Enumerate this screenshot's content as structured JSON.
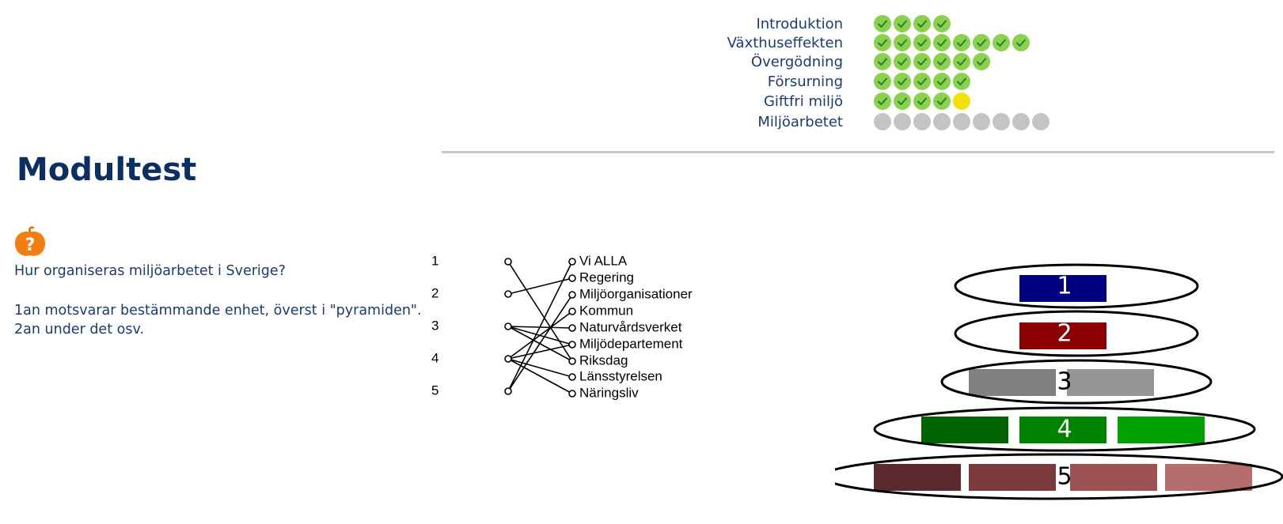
{
  "progress": {
    "modules": [
      {
        "label": "Introduktion",
        "statuses": [
          "done",
          "done",
          "done",
          "done"
        ]
      },
      {
        "label": "Växthuseffekten",
        "statuses": [
          "done",
          "done",
          "done",
          "done",
          "done",
          "done",
          "done",
          "done"
        ]
      },
      {
        "label": "Övergödning",
        "statuses": [
          "done",
          "done",
          "done",
          "done",
          "done",
          "done"
        ]
      },
      {
        "label": "Försurning",
        "statuses": [
          "done",
          "done",
          "done",
          "done",
          "done"
        ]
      },
      {
        "label": "Giftfri miljö",
        "statuses": [
          "done",
          "done",
          "done",
          "done",
          "current"
        ]
      },
      {
        "label": "Miljöarbetet",
        "statuses": [
          "todo",
          "todo",
          "todo",
          "todo",
          "todo",
          "todo",
          "todo",
          "todo",
          "todo"
        ]
      }
    ],
    "colors": {
      "done": "#8ad14e",
      "current": "#f2e10a",
      "todo": "#c4c4c4",
      "check": "#2e7d32"
    }
  },
  "page": {
    "title": "Modultest"
  },
  "question": {
    "icon": "question-apple-icon",
    "prompt": "Hur organiseras miljöarbetet i Sverige?",
    "instruction_line1": "1an motsvarar bestämmande enhet, överst i \"pyramiden\".",
    "instruction_line2": "2an under det osv."
  },
  "matching": {
    "levels": [
      "1",
      "2",
      "3",
      "4",
      "5"
    ],
    "options": [
      "Vi ALLA",
      "Regering",
      "Miljöorganisationer",
      "Kommun",
      "Naturvårdsverket",
      "Miljödepartement",
      "Riksdag",
      "Länsstyrelsen",
      "Näringsliv"
    ],
    "connections": [
      [
        1,
        7
      ],
      [
        2,
        2
      ],
      [
        3,
        5
      ],
      [
        3,
        6
      ],
      [
        3,
        7
      ],
      [
        4,
        4
      ],
      [
        4,
        6
      ],
      [
        4,
        8
      ],
      [
        4,
        9
      ],
      [
        5,
        1
      ],
      [
        5,
        3
      ]
    ]
  },
  "pyramid": {
    "tiers": [
      {
        "label": "1",
        "colors": [
          "#000080"
        ]
      },
      {
        "label": "2",
        "colors": [
          "#8b0000"
        ]
      },
      {
        "label": "3",
        "colors": [
          "#808080",
          "#969696"
        ]
      },
      {
        "label": "4",
        "colors": [
          "#006400",
          "#008400",
          "#00a000"
        ]
      },
      {
        "label": "5",
        "colors": [
          "#5c2a2e",
          "#7b3a3c",
          "#9c5152",
          "#b56c6c"
        ]
      }
    ]
  }
}
